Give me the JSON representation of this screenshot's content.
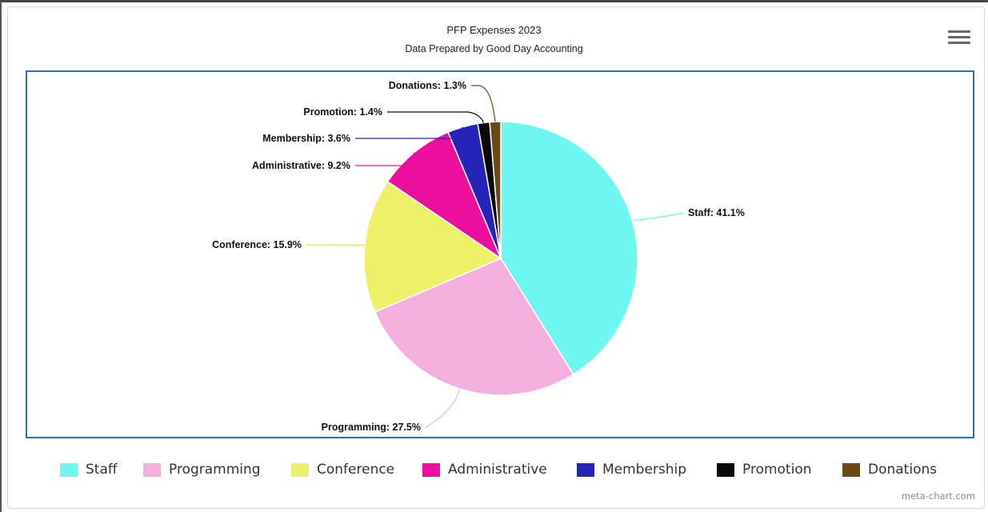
{
  "chart_data": {
    "type": "pie",
    "title": "PFP Expenses 2023",
    "subtitle": "Data Prepared by Good Day Accounting",
    "slices": [
      {
        "name": "Staff",
        "value": 41.1,
        "label": "Staff: 41.1%",
        "color": "#6ef7f0"
      },
      {
        "name": "Programming",
        "value": 27.5,
        "label": "Programming: 27.5%",
        "color": "#f3b0de"
      },
      {
        "name": "Conference",
        "value": 15.9,
        "label": "Conference: 15.9%",
        "color": "#eef068"
      },
      {
        "name": "Administrative",
        "value": 9.2,
        "label": "Administrative: 9.2%",
        "color": "#ec0f9e"
      },
      {
        "name": "Membership",
        "value": 3.6,
        "label": "Membership: 3.6%",
        "color": "#2424b8"
      },
      {
        "name": "Promotion",
        "value": 1.4,
        "label": "Promotion: 1.4%",
        "color": "#0a0a0a"
      },
      {
        "name": "Donations",
        "value": 1.3,
        "label": "Donations: 1.3%",
        "color": "#6b4a1a"
      }
    ],
    "legend_position": "bottom"
  },
  "menu": {
    "icon": "hamburger-menu-icon"
  },
  "credit": "meta-chart.com"
}
